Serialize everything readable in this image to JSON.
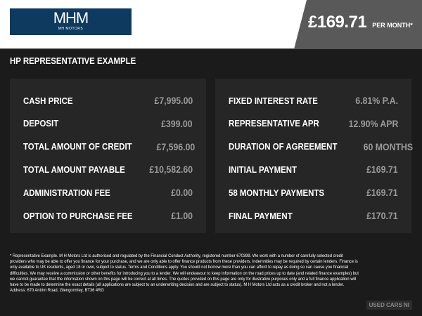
{
  "header": {
    "logo_text": "MHM",
    "logo_sub": "MH MOTORS",
    "price": "£169.71",
    "per_month": "PER MONTH*"
  },
  "title": "HP REPRESENTATIVE EXAMPLE",
  "left": [
    {
      "label": "CASH PRICE",
      "value": "£7,995.00"
    },
    {
      "label": "DEPOSIT",
      "value": "£399.00"
    },
    {
      "label": "TOTAL AMOUNT OF CREDIT",
      "value": "£7,596.00"
    },
    {
      "label": "TOTAL AMOUNT PAYABLE",
      "value": "£10,582.60"
    },
    {
      "label": "ADMINISTRATION FEE",
      "value": "£0.00"
    },
    {
      "label": "OPTION TO PURCHASE FEE",
      "value": "£1.00"
    }
  ],
  "right": [
    {
      "label": "FIXED INTEREST RATE",
      "value": "6.81% P.A."
    },
    {
      "label": "REPRESENTATIVE APR",
      "value": "12.90% APR"
    },
    {
      "label": "DURATION OF AGREEMENT",
      "value": "60 MONTHS"
    },
    {
      "label": "INITIAL PAYMENT",
      "value": "£169.71"
    },
    {
      "label": "58 MONTHLY PAYMENTS",
      "value": "£169.71"
    },
    {
      "label": "FINAL PAYMENT",
      "value": "£170.71"
    }
  ],
  "footer": "* Representative Example. M H Motors Ltd is authorised and regulated by the Financial Conduct Authority, registered number 670399. We work with a number of carefully selected credit providers who may be able to offer you finance for your purchase, and we are only able to offer finance products from these providers. Indemnities may be required by certain lenders. Finance is only available to UK residents, aged 18 or over, subject to status. Terms and Conditions apply. You should not borrow more than you can afford to repay as doing so can cause you financial difficulties. We may receive a commission or other benefits for introducing you to a lender. We will endeavour to keep information on the road prices up to date (and related finance examples) but we cannot guarantee that the information shown on this page will be correct at all times. The quotes provided on this page are only for illustrative purposes only and a full finance application will have to be made to determine the exact details (all applications are subject to an underwriting decision and are subject to status). M H Motors Ltd acts as a credit broker and not a lender. Address: 670 Antrim Road, Glengormley, BT36 4RG",
  "watermark": "USED CARS NI"
}
